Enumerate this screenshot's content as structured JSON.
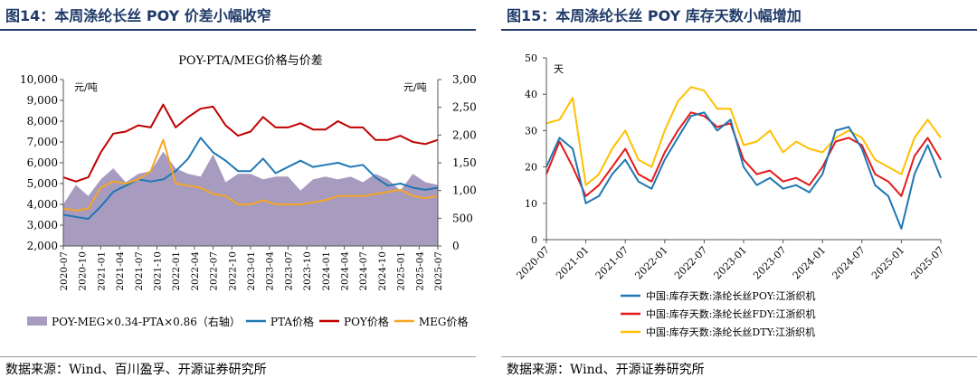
{
  "left": {
    "fig_title": "图14：本周涤纶长丝 POY 价差小幅收窄",
    "source": "数据来源：Wind、百川盈孚、开源证券研究所",
    "chart_data": {
      "type": "line",
      "title": "POY-PTA/MEG价格与价差",
      "ylabel_left": "元/吨",
      "ylabel_right": "元/吨",
      "ylim_left": [
        2000,
        10000
      ],
      "ylim_right": [
        0,
        3000
      ],
      "yticks_left": [
        "2,000",
        "3,000",
        "4,000",
        "5,000",
        "6,000",
        "7,000",
        "8,000",
        "9,000",
        "10,000"
      ],
      "yticks_right": [
        "0",
        "500",
        "1,000",
        "1,500",
        "2,000",
        "2,500",
        "3,000"
      ],
      "x_ticks": [
        "2020-07",
        "2020-10",
        "2021-01",
        "2021-04",
        "2021-07",
        "2021-10",
        "2022-01",
        "2022-04",
        "2022-07",
        "2022-10",
        "2023-01",
        "2023-04",
        "2023-07",
        "2023-10",
        "2024-01",
        "2024-04",
        "2024-07",
        "2024-10",
        "2025-01",
        "2025-04",
        "2025-07"
      ],
      "x": [
        "2020-07",
        "2020-09",
        "2020-11",
        "2021-01",
        "2021-03",
        "2021-05",
        "2021-07",
        "2021-09",
        "2021-11",
        "2022-01",
        "2022-03",
        "2022-05",
        "2022-07",
        "2022-09",
        "2022-11",
        "2023-01",
        "2023-03",
        "2023-05",
        "2023-07",
        "2023-09",
        "2023-11",
        "2024-01",
        "2024-03",
        "2024-05",
        "2024-07",
        "2024-09",
        "2024-11",
        "2025-01",
        "2025-03",
        "2025-05",
        "2025-07"
      ],
      "series": [
        {
          "name": "POY-MEG×0.34-PTA×0.86（右轴）",
          "type": "area",
          "axis": "right",
          "color": "#a79bc0",
          "values": [
            750,
            1100,
            900,
            1200,
            1400,
            1150,
            1300,
            1350,
            1700,
            1400,
            1300,
            1250,
            1650,
            1150,
            1300,
            1300,
            1200,
            1250,
            1250,
            1000,
            1200,
            1250,
            1200,
            1250,
            1150,
            1300,
            1200,
            1000,
            1300,
            1150,
            1100
          ]
        },
        {
          "name": "PTA价格",
          "type": "line",
          "axis": "left",
          "color": "#1f77b4",
          "values": [
            3500,
            3400,
            3300,
            3900,
            4600,
            4900,
            5200,
            5100,
            5200,
            5600,
            6200,
            7200,
            6500,
            6100,
            5600,
            5600,
            6200,
            5500,
            5800,
            6100,
            5800,
            5900,
            6000,
            5800,
            5900,
            5300,
            4900,
            5000,
            4800,
            4700,
            4800
          ]
        },
        {
          "name": "POY价格",
          "type": "line",
          "axis": "left",
          "color": "#c00000",
          "values": [
            5300,
            5100,
            5300,
            6500,
            7400,
            7500,
            7800,
            7700,
            8800,
            7700,
            8200,
            8600,
            8700,
            7800,
            7300,
            7500,
            8200,
            7700,
            7700,
            7900,
            7600,
            7600,
            8000,
            7700,
            7700,
            7100,
            7100,
            7300,
            7000,
            6900,
            7100
          ]
        },
        {
          "name": "MEG价格",
          "type": "line",
          "axis": "left",
          "color": "#f5a623",
          "values": [
            3800,
            3700,
            3800,
            4800,
            5100,
            5000,
            5200,
            5600,
            7100,
            5000,
            4900,
            4800,
            4500,
            4400,
            4000,
            4000,
            4200,
            4000,
            4000,
            4000,
            4100,
            4200,
            4400,
            4400,
            4400,
            4500,
            4600,
            4700,
            4400,
            4300,
            4400
          ]
        }
      ],
      "legend": [
        "POY-MEG×0.34-PTA×0.86（右轴）",
        "PTA价格",
        "POY价格",
        "MEG价格"
      ],
      "legend_position": "bottom"
    }
  },
  "right": {
    "fig_title": "图15：本周涤纶长丝 POY 库存天数小幅增加",
    "source": "数据来源：Wind、开源证券研究所",
    "chart_data": {
      "type": "line",
      "title": "",
      "ylabel": "天",
      "ylim": [
        0,
        50
      ],
      "yticks": [
        "0",
        "10",
        "20",
        "30",
        "40",
        "50"
      ],
      "x_ticks": [
        "2020-07",
        "2021-01",
        "2021-07",
        "2022-01",
        "2022-07",
        "2023-01",
        "2023-07",
        "2024-01",
        "2024-07",
        "2025-01",
        "2025-07"
      ],
      "x": [
        "2020-07",
        "2020-09",
        "2020-11",
        "2021-01",
        "2021-03",
        "2021-05",
        "2021-07",
        "2021-09",
        "2021-11",
        "2022-01",
        "2022-03",
        "2022-05",
        "2022-07",
        "2022-09",
        "2022-11",
        "2023-01",
        "2023-03",
        "2023-05",
        "2023-07",
        "2023-09",
        "2023-11",
        "2024-01",
        "2024-03",
        "2024-05",
        "2024-07",
        "2024-09",
        "2024-11",
        "2025-01",
        "2025-03",
        "2025-05",
        "2025-07"
      ],
      "series": [
        {
          "name": "中国:库存天数:涤纶长丝POY:江浙织机",
          "color": "#1f77b4",
          "values": [
            20,
            28,
            25,
            10,
            12,
            18,
            22,
            16,
            14,
            22,
            28,
            34,
            35,
            30,
            33,
            20,
            15,
            17,
            14,
            15,
            13,
            18,
            30,
            31,
            25,
            15,
            12,
            3,
            18,
            26,
            17
          ]
        },
        {
          "name": "中国:库存天数:涤纶长丝FDY:江浙织机",
          "color": "#e31a1c",
          "values": [
            18,
            27,
            20,
            12,
            15,
            20,
            25,
            18,
            16,
            24,
            30,
            35,
            34,
            31,
            32,
            22,
            18,
            19,
            16,
            17,
            15,
            20,
            27,
            28,
            26,
            18,
            16,
            12,
            23,
            28,
            22
          ]
        },
        {
          "name": "中国:库存天数:涤纶长丝DTY:江浙织机",
          "color": "#ffc000",
          "values": [
            32,
            33,
            39,
            15,
            18,
            25,
            30,
            22,
            20,
            30,
            38,
            42,
            41,
            36,
            36,
            26,
            27,
            30,
            24,
            27,
            25,
            24,
            28,
            30,
            28,
            22,
            20,
            18,
            28,
            33,
            28
          ]
        }
      ],
      "legend": [
        "中国:库存天数:涤纶长丝POY:江浙织机",
        "中国:库存天数:涤纶长丝FDY:江浙织机",
        "中国:库存天数:涤纶长丝DTY:江浙织机"
      ],
      "legend_position": "bottom"
    }
  }
}
